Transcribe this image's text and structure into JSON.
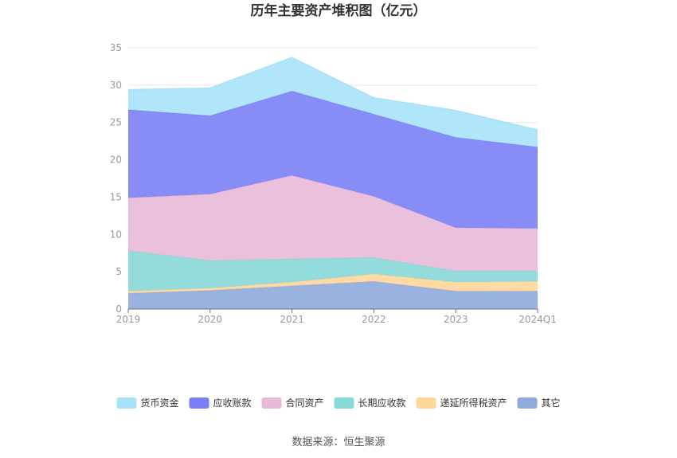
{
  "chart_data": {
    "type": "area",
    "stacked": true,
    "title": "历年主要资产堆积图（亿元）",
    "categories": [
      "2019",
      "2020",
      "2021",
      "2022",
      "2023",
      "2024Q1"
    ],
    "ylim": [
      0,
      35
    ],
    "yticks": [
      0,
      5,
      10,
      15,
      20,
      25,
      30,
      35
    ],
    "grid": true,
    "legend_position": "bottom",
    "series": [
      {
        "name": "其它",
        "color": "#8faadc",
        "values": [
          2.1,
          2.5,
          3.1,
          3.7,
          2.4,
          2.4
        ]
      },
      {
        "name": "递延所得税资产",
        "color": "#ffd699",
        "values": [
          0.3,
          0.3,
          0.5,
          1.0,
          1.2,
          1.3
        ]
      },
      {
        "name": "长期应收款",
        "color": "#88d8d8",
        "values": [
          5.4,
          3.7,
          3.1,
          2.2,
          1.5,
          1.4
        ]
      },
      {
        "name": "合同资产",
        "color": "#e8b9d9",
        "values": [
          7.1,
          8.9,
          11.2,
          8.2,
          5.8,
          5.7
        ]
      },
      {
        "name": "应收账款",
        "color": "#7b7ff5",
        "values": [
          11.8,
          10.5,
          11.3,
          11.0,
          12.1,
          10.9
        ]
      },
      {
        "name": "货币资金",
        "color": "#a8e2f8",
        "values": [
          2.7,
          3.7,
          4.5,
          2.2,
          3.6,
          2.3
        ]
      }
    ],
    "legend_order": [
      "货币资金",
      "应收账款",
      "合同资产",
      "长期应收款",
      "递延所得税资产",
      "其它"
    ],
    "source": "数据来源：恒生聚源"
  }
}
